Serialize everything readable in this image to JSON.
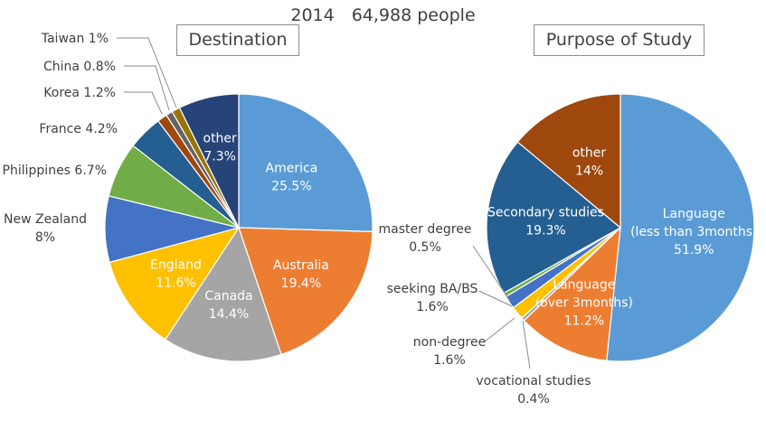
{
  "header": {
    "title": "2014　64,988 people"
  },
  "chart_data": [
    {
      "type": "pie",
      "title": "Destination",
      "slices": [
        {
          "label": "America",
          "value": 25.5,
          "value_text": "25.5%",
          "color": "#5B9BD5"
        },
        {
          "label": "Australia",
          "value": 19.4,
          "value_text": "19.4%",
          "color": "#ED7D31"
        },
        {
          "label": "Canada",
          "value": 14.4,
          "value_text": "14.4%",
          "color": "#A5A5A5"
        },
        {
          "label": "England",
          "value": 11.6,
          "value_text": "11.6%",
          "color": "#FFC000"
        },
        {
          "label": "New Zealand",
          "value": 8,
          "value_text": "8%",
          "color": "#4472C4"
        },
        {
          "label": "Philippines",
          "value": 6.7,
          "value_text": "6.7%",
          "color": "#70AD47"
        },
        {
          "label": "France",
          "value": 4.2,
          "value_text": "4.2%",
          "color": "#255E91"
        },
        {
          "label": "Korea",
          "value": 1.2,
          "value_text": "1.2%",
          "color": "#9E480E"
        },
        {
          "label": "China",
          "value": 0.8,
          "value_text": "0.8%",
          "color": "#636363"
        },
        {
          "label": "Taiwan",
          "value": 1,
          "value_text": "1%",
          "color": "#997300"
        },
        {
          "label": "other",
          "value": 7.3,
          "value_text": "7.3%",
          "color": "#264478"
        }
      ]
    },
    {
      "type": "pie",
      "title": "Purpose of Study",
      "slices": [
        {
          "label": "Language\n(less than 3months)",
          "value": 51.9,
          "value_text": "51.9%",
          "color": "#5B9BD5"
        },
        {
          "label": "Language\n(over 3months)",
          "value": 11.2,
          "value_text": "11.2%",
          "color": "#ED7D31"
        },
        {
          "label": "vocational studies",
          "value": 0.4,
          "value_text": "0.4%",
          "color": "#A5A5A5"
        },
        {
          "label": "non-degree",
          "value": 1.6,
          "value_text": "1.6%",
          "color": "#FFC000"
        },
        {
          "label": "seeking BA/BS",
          "value": 1.6,
          "value_text": "1.6%",
          "color": "#4472C4"
        },
        {
          "label": "master degree",
          "value": 0.5,
          "value_text": "0.5%",
          "color": "#70AD47"
        },
        {
          "label": "Secondary studies",
          "value": 19.3,
          "value_text": "19.3%",
          "color": "#255E91"
        },
        {
          "label": "other",
          "value": 14,
          "value_text": "14%",
          "color": "#9E480E"
        }
      ]
    }
  ]
}
